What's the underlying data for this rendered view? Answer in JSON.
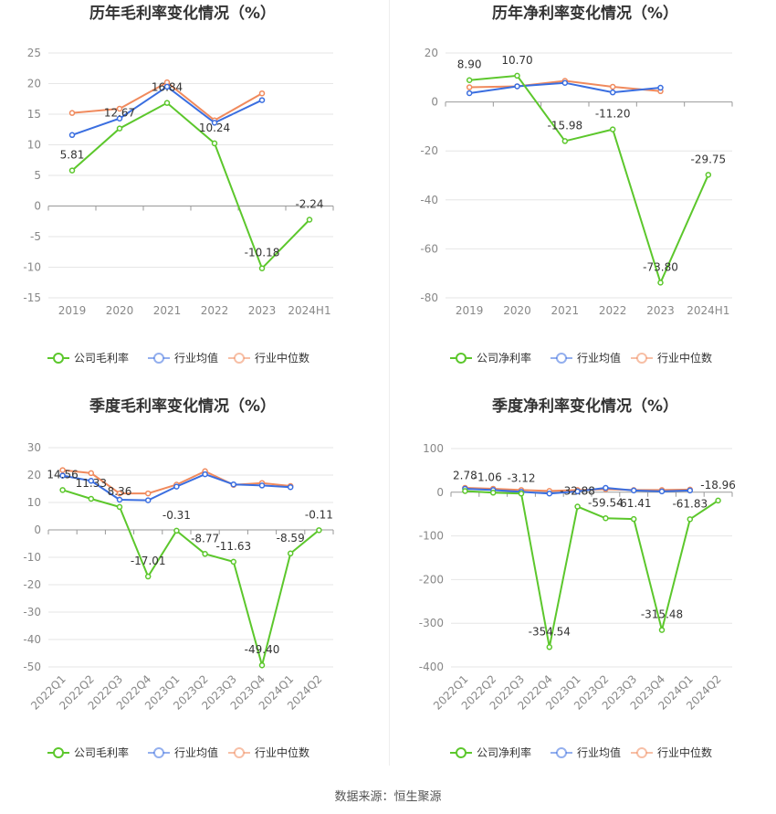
{
  "colors": {
    "company": "#5cc72c",
    "avg": "#3a6ee0",
    "median": "#f08a5d"
  },
  "source_text": "数据来源：恒生聚源",
  "chart_data": [
    {
      "type": "line",
      "title": "历年毛利率变化情况（%）",
      "categories": [
        "2019",
        "2020",
        "2021",
        "2022",
        "2023",
        "2024H1"
      ],
      "ylim": [
        -15,
        25
      ],
      "yticks": [
        25,
        20,
        15,
        10,
        5,
        0,
        -5,
        -10,
        -15
      ],
      "legend": [
        "公司毛利率",
        "行业均值",
        "行业中位数"
      ],
      "series": [
        {
          "name": "公司毛利率",
          "role": "company",
          "values": [
            5.81,
            12.67,
            16.84,
            10.24,
            -10.18,
            -2.24
          ],
          "labels": [
            "5.81",
            "12.67",
            "16.84",
            "10.24",
            "-10.18",
            "-2.24"
          ]
        },
        {
          "name": "行业均值",
          "role": "avg",
          "values": [
            11.6,
            14.3,
            19.5,
            13.6,
            17.3,
            null
          ]
        },
        {
          "name": "行业中位数",
          "role": "median",
          "values": [
            15.2,
            15.9,
            20.2,
            14.0,
            18.4,
            null
          ]
        }
      ]
    },
    {
      "type": "line",
      "title": "历年净利率变化情况（%）",
      "categories": [
        "2019",
        "2020",
        "2021",
        "2022",
        "2023",
        "2024H1"
      ],
      "ylim": [
        -80,
        20
      ],
      "yticks": [
        20,
        0,
        -20,
        -40,
        -60,
        -80
      ],
      "legend": [
        "公司净利率",
        "行业均值",
        "行业中位数"
      ],
      "series": [
        {
          "name": "公司净利率",
          "role": "company",
          "values": [
            8.9,
            10.7,
            -15.98,
            -11.2,
            -73.8,
            -29.75
          ],
          "labels": [
            "8.90",
            "10.70",
            "-15.98",
            "-11.20",
            "-73.80",
            "-29.75"
          ]
        },
        {
          "name": "行业均值",
          "role": "avg",
          "values": [
            3.6,
            6.4,
            7.8,
            3.9,
            5.8,
            null
          ]
        },
        {
          "name": "行业中位数",
          "role": "median",
          "values": [
            6.0,
            6.4,
            8.6,
            6.2,
            4.4,
            null
          ]
        }
      ]
    },
    {
      "type": "line",
      "title": "季度毛利率变化情况（%）",
      "categories": [
        "2022Q1",
        "2022Q2",
        "2022Q3",
        "2022Q4",
        "2023Q1",
        "2023Q2",
        "2023Q3",
        "2023Q4",
        "2024Q1",
        "2024Q2"
      ],
      "ylim": [
        -50,
        30
      ],
      "yticks": [
        30,
        20,
        10,
        0,
        -10,
        -20,
        -30,
        -40,
        -50
      ],
      "legend": [
        "公司毛利率",
        "行业均值",
        "行业中位数"
      ],
      "series": [
        {
          "name": "公司毛利率",
          "role": "company",
          "values": [
            14.56,
            11.33,
            8.36,
            -17.01,
            -0.31,
            -8.77,
            -11.63,
            -49.4,
            -8.59,
            -0.11
          ],
          "labels": [
            "14.56",
            "11.33",
            "8.36",
            "-17.01",
            "-0.31",
            "-8.77",
            "-11.63",
            "-49.40",
            "-8.59",
            "-0.11"
          ]
        },
        {
          "name": "行业均值",
          "role": "avg",
          "values": [
            19.8,
            17.9,
            11.0,
            10.8,
            15.8,
            20.3,
            16.6,
            16.2,
            15.6,
            null
          ]
        },
        {
          "name": "行业中位数",
          "role": "median",
          "values": [
            21.8,
            20.7,
            13.3,
            13.3,
            16.5,
            21.4,
            16.4,
            17.1,
            16.0,
            null
          ]
        }
      ]
    },
    {
      "type": "line",
      "title": "季度净利率变化情况（%）",
      "categories": [
        "2022Q1",
        "2022Q2",
        "2022Q3",
        "2022Q4",
        "2023Q1",
        "2023Q2",
        "2023Q3",
        "2023Q4",
        "2024Q1",
        "2024Q2"
      ],
      "ylim": [
        -400,
        100
      ],
      "yticks": [
        100,
        0,
        -100,
        -200,
        -300,
        -400
      ],
      "legend": [
        "公司净利率",
        "行业均值",
        "行业中位数"
      ],
      "series": [
        {
          "name": "公司净利率",
          "role": "company",
          "values": [
            2.78,
            -1.06,
            -3.12,
            -354.54,
            -32.88,
            -59.54,
            -61.41,
            -315.48,
            -61.83,
            -18.96
          ],
          "labels": [
            "2.78",
            "-1.06",
            "-3.12",
            "-354.54",
            "-32.88",
            "-59.54",
            "-61.41",
            "-315.48",
            "-61.83",
            "-18.96"
          ]
        },
        {
          "name": "行业均值",
          "role": "avg",
          "values": [
            8,
            5,
            1,
            -3,
            2,
            10,
            4,
            2,
            4,
            null
          ]
        },
        {
          "name": "行业中位数",
          "role": "median",
          "values": [
            10,
            8,
            5,
            3,
            5,
            7,
            5,
            5,
            6,
            null
          ]
        }
      ]
    }
  ]
}
